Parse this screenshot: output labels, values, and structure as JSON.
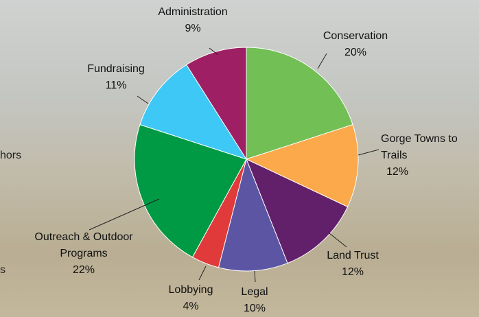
{
  "chart_data": {
    "type": "pie",
    "categories": [
      "Conservation",
      "Gorge Towns to Trails",
      "Land Trust",
      "Legal",
      "Lobbying",
      "Outreach & Outdoor Programs",
      "Fundraising",
      "Administration"
    ],
    "values": [
      20,
      12,
      12,
      10,
      4,
      22,
      11,
      9
    ],
    "value_labels": [
      "20%",
      "12%",
      "12%",
      "10%",
      "4%",
      "22%",
      "11%",
      "9%"
    ],
    "colors": [
      "#72bf56",
      "#fba94a",
      "#62206a",
      "#5c55a3",
      "#e03a3a",
      "#009a44",
      "#3ec8f5",
      "#9e1f63"
    ],
    "annotations": [
      "hors",
      "s"
    ]
  }
}
